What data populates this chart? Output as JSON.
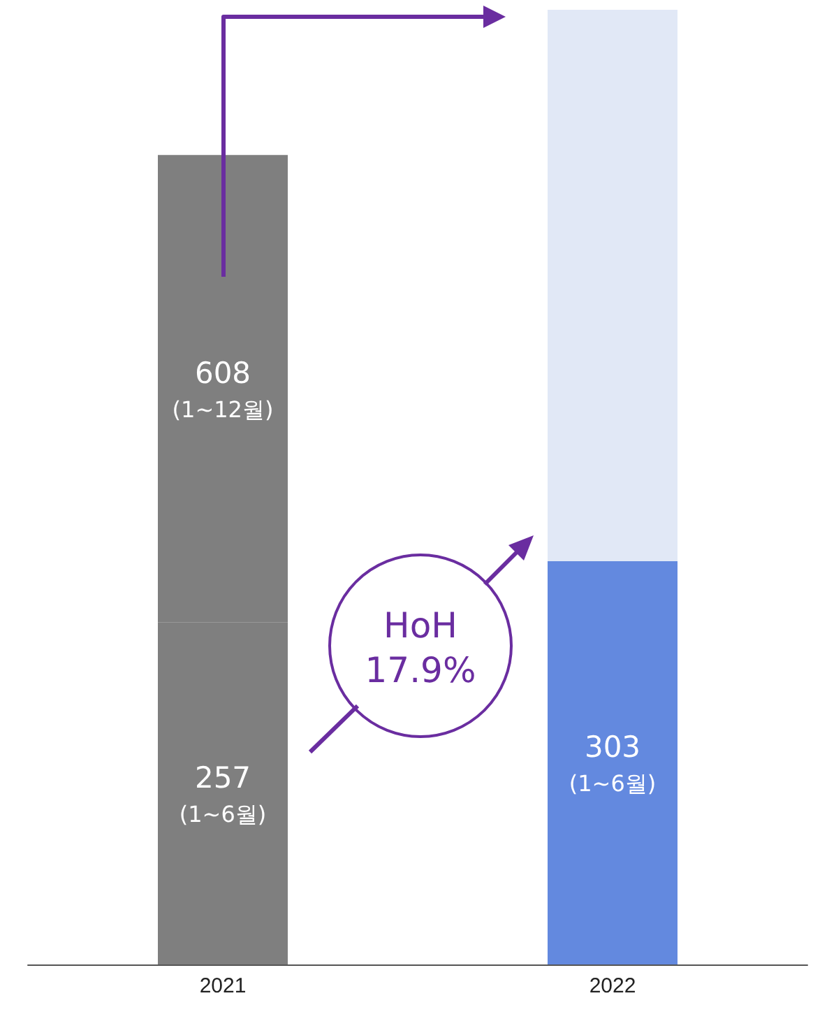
{
  "chart_data": {
    "type": "bar",
    "stacked": true,
    "categories": [
      "2021",
      "2022"
    ],
    "series": [
      {
        "colors": [
          "#7f7f7f",
          "#6389df"
        ],
        "values": [
          257,
          303
        ],
        "value_labels": [
          "257\n(1~6월)",
          "303\n(1~6월)"
        ]
      },
      {
        "colors": [
          "#7f7f7f",
          "#e1e8f6"
        ],
        "values": [
          351,
          414
        ]
      }
    ],
    "totals": [
      "608\n(1~12월)",
      null
    ],
    "annotations": [
      "HoH\n17.9%"
    ]
  }
}
